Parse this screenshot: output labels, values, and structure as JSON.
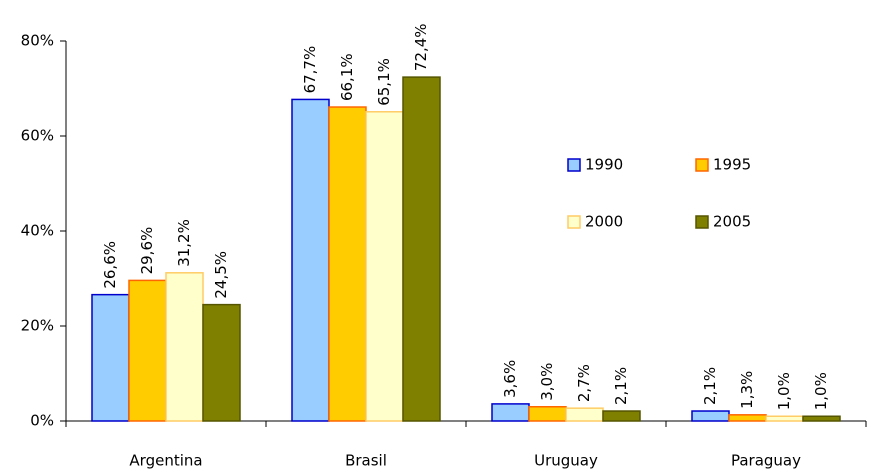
{
  "chart_data": {
    "type": "bar",
    "categories": [
      "Argentina",
      "Brasil",
      "Uruguay",
      "Paraguay"
    ],
    "series": [
      {
        "name": "1990",
        "color": "#99ccff",
        "edgecolor": "#0000cc",
        "values": [
          26.6,
          67.7,
          3.6,
          2.1
        ],
        "value_labels": [
          "26,6%",
          "67,7%",
          "3,6%",
          "2,1%"
        ]
      },
      {
        "name": "1995",
        "color": "#ffcc00",
        "edgecolor": "#ff6600",
        "values": [
          29.6,
          66.1,
          3.0,
          1.3
        ],
        "value_labels": [
          "29,6%",
          "66,1%",
          "3,0%",
          "1,3%"
        ]
      },
      {
        "name": "2000",
        "color": "#ffffcc",
        "edgecolor": "#ffcc66",
        "values": [
          31.2,
          65.1,
          2.7,
          1.0
        ],
        "value_labels": [
          "31,2%",
          "65,1%",
          "2,7%",
          "1,0%"
        ]
      },
      {
        "name": "2005",
        "color": "#808000",
        "edgecolor": "#555500",
        "values": [
          24.5,
          72.4,
          2.1,
          1.0
        ],
        "value_labels": [
          "24,5%",
          "72,4%",
          "2,1%",
          "1,0%"
        ]
      }
    ],
    "ylim": [
      0,
      80
    ],
    "yticks": [
      {
        "value": 0,
        "label": "0%"
      },
      {
        "value": 20,
        "label": "20%"
      },
      {
        "value": 40,
        "label": "40%"
      },
      {
        "value": 60,
        "label": "60%"
      },
      {
        "value": 80,
        "label": "80%"
      }
    ],
    "grid": false,
    "legend": "right"
  }
}
